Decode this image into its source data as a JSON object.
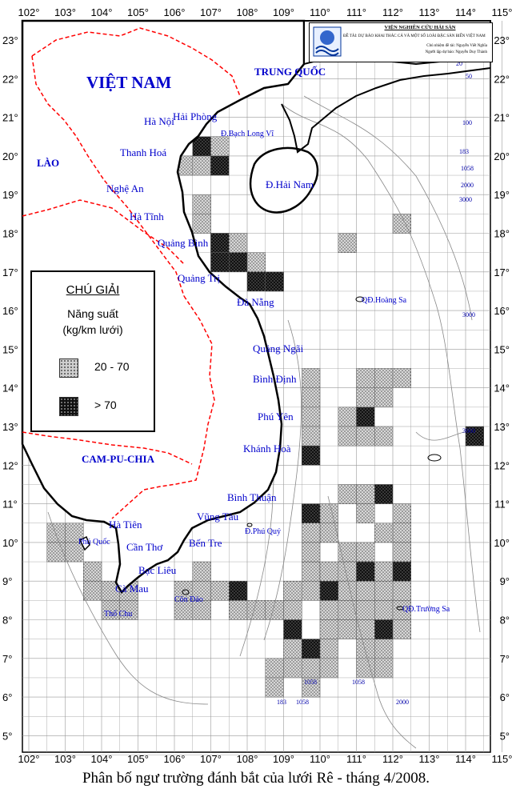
{
  "map": {
    "lon_labels": [
      "102°",
      "103°",
      "104°",
      "105°",
      "106°",
      "107°",
      "108°",
      "109°",
      "110°",
      "111°",
      "112°",
      "113°",
      "114°",
      "115°"
    ],
    "lat_labels": [
      "23°",
      "22°",
      "21°",
      "20°",
      "19°",
      "18°",
      "17°",
      "16°",
      "15°",
      "14°",
      "13°",
      "12°",
      "11°",
      "10°",
      "9°",
      "8°",
      "7°",
      "6°",
      "5°"
    ],
    "lon_range": [
      102,
      115
    ],
    "lat_range": [
      4.5,
      23.5
    ],
    "colors": {
      "land_line": "#000000",
      "border": "#ff0000",
      "labels": "#0000cc",
      "grid": "#999999"
    }
  },
  "places": {
    "vietnam": "VIỆT NAM",
    "china": "TRUNG QUỐC",
    "laos": "LÀO",
    "cambodia": "CAM-PU-CHIA",
    "hanoi": "Hà Nội",
    "haiphong": "Hải Phòng",
    "bachlongvi": "Đ.Bạch Long Vĩ",
    "thanhhoa": "Thanh Hoá",
    "nghean": "Nghệ An",
    "hatinh": "Hà Tĩnh",
    "quangbinh": "Quảng Bình",
    "quangtri": "Quảng Trị",
    "danang": "Đà Nẵng",
    "quangngai": "Quảng Ngãi",
    "binhdinh": "Bình Định",
    "phuyen": "Phú Yên",
    "khanhhoa": "Khánh Hoà",
    "binhthuan": "Bình Thuận",
    "vungtau": "Vũng Tàu",
    "phuquy": "Đ.Phú Quý",
    "bentre": "Bến Tre",
    "hatien": "Hà Tiên",
    "phuquoc": "Phú Quốc",
    "cantho": "Cần Thơ",
    "baclieu": "Bạc Liêu",
    "camau": "Cà Mau",
    "condao": "Côn Đảo",
    "thochu": "Thổ Chu",
    "hainam": "Đ.Hải Nam",
    "hoangsa": "QĐ.Hoàng Sa",
    "truongsa": "QĐ.Trường Sa"
  },
  "depths": [
    "20",
    "50",
    "100",
    "183",
    "1058",
    "2000",
    "3000",
    "3000",
    "3660",
    "1058",
    "183",
    "1058",
    "1058",
    "2000"
  ],
  "legend": {
    "title": "CHÚ GIẢI",
    "subtitle1": "Năng suất",
    "subtitle2": "(kg/km lưới)",
    "class1": "20 - 70",
    "class2": "> 70"
  },
  "title_box": {
    "institute": "VIỆN NGHIÊN CỨU HẢI SẢN",
    "project": "ĐỀ TÀI: DỰ BÁO KHAI THÁC CÁ VÀ MỘT SỐ LOÀI ĐẶC SẢN BIỂN VIỆT NAM",
    "chief": "Chủ nhiệm đề tài: Nguyễn Viết Nghĩa",
    "maker": "Người lập dự báo: Nguyễn Duy Thành"
  },
  "caption": "Phân bố ngư trường đánh bắt của lưới Rê - tháng 4/2008.",
  "cells_low": [
    [
      106.0,
      19.5
    ],
    [
      106.5,
      19.5
    ],
    [
      107.0,
      20.0
    ],
    [
      107.0,
      19.5
    ],
    [
      106.5,
      18.5
    ],
    [
      106.5,
      18.0
    ],
    [
      107.0,
      17.5
    ],
    [
      107.5,
      17.5
    ],
    [
      108.0,
      17.0
    ],
    [
      108.5,
      16.5
    ],
    [
      112.0,
      18.0
    ],
    [
      110.5,
      17.5
    ],
    [
      111.0,
      14.0
    ],
    [
      111.5,
      14.0
    ],
    [
      111.0,
      13.5
    ],
    [
      111.5,
      13.5
    ],
    [
      110.5,
      13.0
    ],
    [
      112.0,
      14.0
    ],
    [
      109.5,
      14.0
    ],
    [
      109.5,
      13.5
    ],
    [
      109.5,
      13.0
    ],
    [
      109.5,
      12.5
    ],
    [
      110.5,
      12.5
    ],
    [
      111.0,
      12.5
    ],
    [
      111.5,
      12.5
    ],
    [
      111.0,
      11.0
    ],
    [
      110.5,
      11.0
    ],
    [
      111.0,
      10.5
    ],
    [
      110.0,
      10.5
    ],
    [
      110.0,
      10.0
    ],
    [
      109.5,
      10.0
    ],
    [
      110.5,
      9.5
    ],
    [
      112.0,
      10.5
    ],
    [
      112.0,
      10.0
    ],
    [
      111.5,
      10.0
    ],
    [
      112.0,
      9.5
    ],
    [
      111.5,
      9.0
    ],
    [
      111.0,
      9.5
    ],
    [
      110.5,
      9.0
    ],
    [
      111.0,
      9.0
    ],
    [
      111.0,
      8.5
    ],
    [
      110.5,
      8.5
    ],
    [
      112.0,
      8.5
    ],
    [
      111.5,
      8.5
    ],
    [
      102.5,
      10.0
    ],
    [
      103.0,
      10.0
    ],
    [
      102.5,
      9.5
    ],
    [
      103.0,
      9.5
    ],
    [
      103.5,
      9.0
    ],
    [
      103.5,
      8.5
    ],
    [
      104.0,
      8.5
    ],
    [
      104.5,
      8.5
    ],
    [
      104.5,
      8.0
    ],
    [
      104.0,
      8.0
    ],
    [
      106.0,
      8.5
    ],
    [
      106.5,
      8.5
    ],
    [
      106.5,
      9.0
    ],
    [
      106.5,
      8.0
    ],
    [
      107.0,
      8.5
    ],
    [
      106.0,
      8.0
    ],
    [
      107.5,
      8.0
    ],
    [
      108.0,
      8.0
    ],
    [
      108.5,
      8.0
    ],
    [
      109.0,
      8.0
    ],
    [
      109.0,
      8.5
    ],
    [
      109.5,
      8.5
    ],
    [
      109.5,
      9.0
    ],
    [
      109.5,
      9.5
    ],
    [
      110.0,
      9.0
    ],
    [
      110.0,
      8.0
    ],
    [
      110.5,
      8.0
    ],
    [
      110.0,
      7.5
    ],
    [
      110.5,
      7.5
    ],
    [
      109.0,
      7.0
    ],
    [
      109.5,
      7.0
    ],
    [
      110.0,
      7.0
    ],
    [
      109.0,
      6.5
    ],
    [
      108.5,
      6.5
    ],
    [
      109.5,
      6.5
    ],
    [
      111.0,
      8.0
    ],
    [
      111.5,
      8.0
    ],
    [
      111.0,
      7.5
    ],
    [
      111.0,
      7.0
    ],
    [
      111.5,
      7.0
    ],
    [
      112.0,
      8.0
    ],
    [
      112.0,
      7.5
    ],
    [
      111.5,
      6.5
    ],
    [
      111.0,
      6.5
    ],
    [
      110.0,
      6.5
    ],
    [
      109.5,
      6.0
    ],
    [
      108.5,
      6.0
    ]
  ],
  "cells_high": [
    [
      106.5,
      20.0
    ],
    [
      107.0,
      19.5
    ],
    [
      107.0,
      17.5
    ],
    [
      107.5,
      17.0
    ],
    [
      107.0,
      17.0
    ],
    [
      108.0,
      16.5
    ],
    [
      108.5,
      16.5
    ],
    [
      111.0,
      13.0
    ],
    [
      109.5,
      12.0
    ],
    [
      111.5,
      11.0
    ],
    [
      109.5,
      10.5
    ],
    [
      111.0,
      9.0
    ],
    [
      112.0,
      9.0
    ],
    [
      107.5,
      8.5
    ],
    [
      110.0,
      8.5
    ],
    [
      109.0,
      7.5
    ],
    [
      109.5,
      7.0
    ],
    [
      111.5,
      7.5
    ],
    [
      114.0,
      12.5
    ]
  ]
}
